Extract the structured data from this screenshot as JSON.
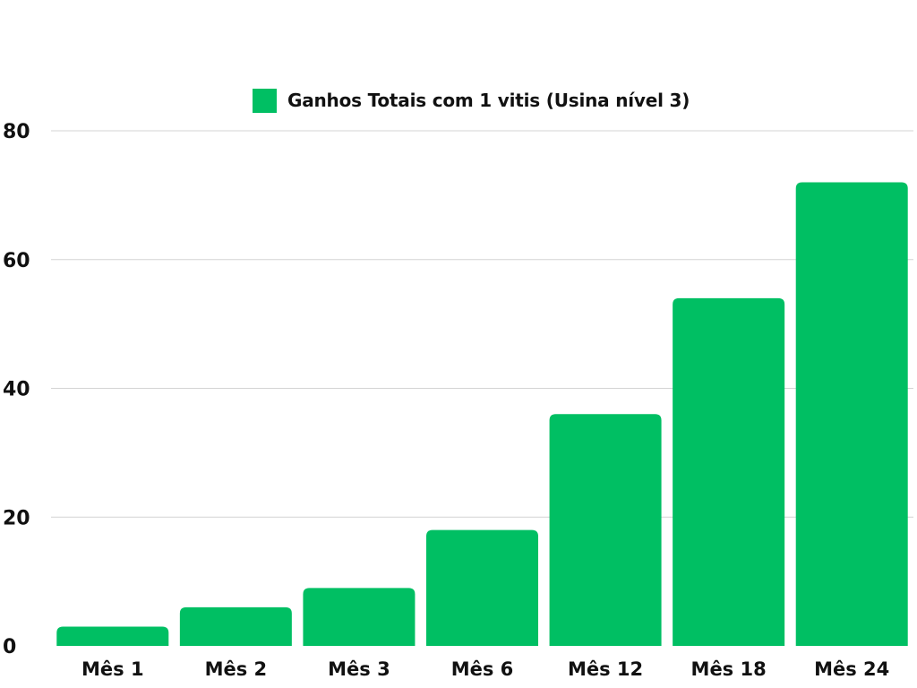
{
  "chart_data": {
    "type": "bar",
    "title": "",
    "xlabel": "",
    "ylabel": "",
    "categories": [
      "Mês 1",
      "Mês 2",
      "Mês 3",
      "Mês 6",
      "Mês 12",
      "Mês 18",
      "Mês 24"
    ],
    "series": [
      {
        "name": "Ganhos Totais com 1 vitis (Usina nível 3)",
        "values": [
          3,
          6,
          9,
          18,
          36,
          54,
          72
        ],
        "color": "#00BF63"
      }
    ],
    "ylim": [
      0,
      80
    ],
    "yticks": [
      "0",
      "20",
      "40",
      "60",
      "80"
    ],
    "grid": true,
    "legend_position": "top-center"
  }
}
